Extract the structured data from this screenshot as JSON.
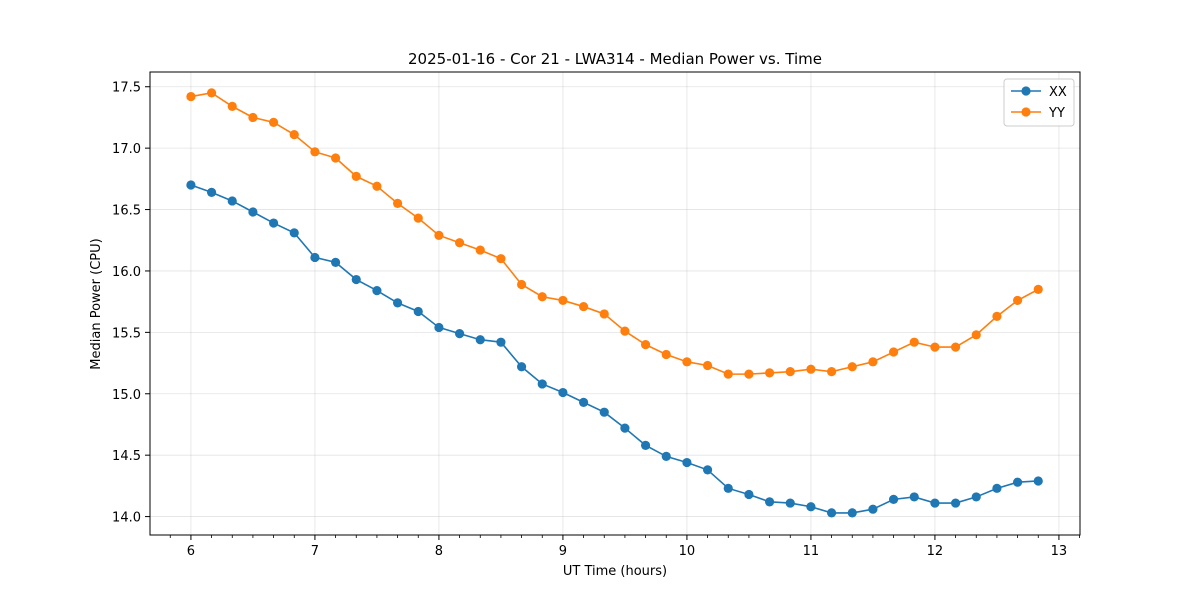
{
  "chart_data": {
    "type": "line",
    "title": "2025-01-16 - Cor 21 - LWA314 - Median Power vs. Time",
    "xlabel": "UT Time (hours)",
    "ylabel": "Median Power (CPU)",
    "xlim": [
      5.67,
      13.17
    ],
    "ylim": [
      13.85,
      17.62
    ],
    "grid": true,
    "legend_position": "top-right",
    "x_ticks": [
      6,
      7,
      8,
      9,
      10,
      11,
      12,
      13
    ],
    "y_ticks": [
      14.0,
      14.5,
      15.0,
      15.5,
      16.0,
      16.5,
      17.0,
      17.5
    ],
    "x_tick_labels": [
      "6",
      "7",
      "8",
      "9",
      "10",
      "11",
      "12",
      "13"
    ],
    "y_tick_labels": [
      "14.0",
      "14.5",
      "15.0",
      "15.5",
      "16.0",
      "16.5",
      "17.0",
      "17.5"
    ],
    "x": [
      6.0,
      6.1667,
      6.3333,
      6.5,
      6.6667,
      6.8333,
      7.0,
      7.1667,
      7.3333,
      7.5,
      7.6667,
      7.8333,
      8.0,
      8.1667,
      8.3333,
      8.5,
      8.6667,
      8.8333,
      9.0,
      9.1667,
      9.3333,
      9.5,
      9.6667,
      9.8333,
      10.0,
      10.1667,
      10.3333,
      10.5,
      10.6667,
      10.8333,
      11.0,
      11.1667,
      11.3333,
      11.5,
      11.6667,
      11.8333,
      12.0,
      12.1667,
      12.3333,
      12.5,
      12.6667,
      12.8333
    ],
    "series": [
      {
        "name": "XX",
        "color": "#1f77b4",
        "values": [
          16.7,
          16.64,
          16.57,
          16.48,
          16.39,
          16.31,
          16.11,
          16.07,
          15.93,
          15.84,
          15.74,
          15.67,
          15.54,
          15.49,
          15.44,
          15.42,
          15.22,
          15.08,
          15.01,
          14.93,
          14.85,
          14.72,
          14.58,
          14.49,
          14.44,
          14.38,
          14.23,
          14.18,
          14.12,
          14.11,
          14.08,
          14.03,
          14.03,
          14.06,
          14.14,
          14.16,
          14.11,
          14.11,
          14.16,
          14.23,
          14.28,
          14.29
        ]
      },
      {
        "name": "YY",
        "color": "#ff7f0e",
        "values": [
          17.42,
          17.45,
          17.34,
          17.25,
          17.21,
          17.11,
          16.97,
          16.92,
          16.77,
          16.69,
          16.55,
          16.43,
          16.29,
          16.23,
          16.17,
          16.1,
          15.89,
          15.79,
          15.76,
          15.71,
          15.65,
          15.51,
          15.4,
          15.32,
          15.26,
          15.23,
          15.16,
          15.16,
          15.17,
          15.18,
          15.2,
          15.18,
          15.22,
          15.26,
          15.34,
          15.42,
          15.38,
          15.38,
          15.48,
          15.63,
          15.76,
          15.85
        ]
      }
    ]
  }
}
